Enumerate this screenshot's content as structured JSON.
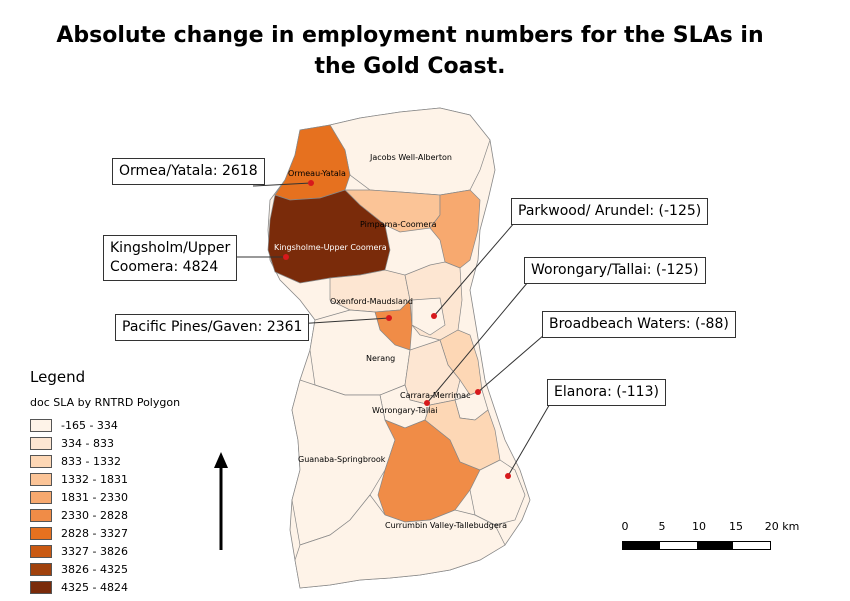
{
  "title": "Absolute change in employment numbers for the SLAs in the Gold Coast.",
  "map_labels": {
    "jacobs": "Jacobs Well-Alberton",
    "ormeau": "Ormeau-Yatala",
    "pimpama": "Pimpama-Coomera",
    "kingsholme": "Kingsholme-Upper Coomera",
    "oxenford": "Oxenford-Maudsland",
    "nerang": "Nerang",
    "carrara": "Carrara-Merrimac",
    "worongary": "Worongary-Tallai",
    "guanaba": "Guanaba-Springbrook",
    "currumbin": "Currumbin Valley-Tallebudgera"
  },
  "callouts": {
    "ormea": "Ormea/Yatala: 2618",
    "kingsholm_line1": "Kingsholm/Upper",
    "kingsholm_line2": "Coomera: 4824",
    "pacific": "Pacific Pines/Gaven: 2361",
    "parkwood": "Parkwood/ Arundel: (-125)",
    "worongary": "Worongary/Tallai: (-125)",
    "broadbeach": "Broadbeach Waters: (-88)",
    "elanora": "Elanora: (-113)"
  },
  "legend": {
    "title": "Legend",
    "subtitle": "doc SLA by RNTRD Polygon",
    "items": [
      {
        "label": "-165 - 334",
        "color": "#fef3e8"
      },
      {
        "label": "334 - 833",
        "color": "#fde6d2"
      },
      {
        "label": "833 - 1332",
        "color": "#fdd7b5"
      },
      {
        "label": "1332 - 1831",
        "color": "#fbc497"
      },
      {
        "label": "1831 - 2330",
        "color": "#f7a96f"
      },
      {
        "label": "2330 - 2828",
        "color": "#f08c47"
      },
      {
        "label": "2828 - 3327",
        "color": "#e6711f"
      },
      {
        "label": "3327 - 3826",
        "color": "#c95912"
      },
      {
        "label": "3826 - 4325",
        "color": "#a0410c"
      },
      {
        "label": "4325 - 4824",
        "color": "#7a2b0a"
      }
    ]
  },
  "scale_bar": {
    "ticks": [
      "0",
      "5",
      "10",
      "15",
      "20 km"
    ]
  },
  "colors": {
    "point": "#d7191c",
    "border": "#888888"
  }
}
